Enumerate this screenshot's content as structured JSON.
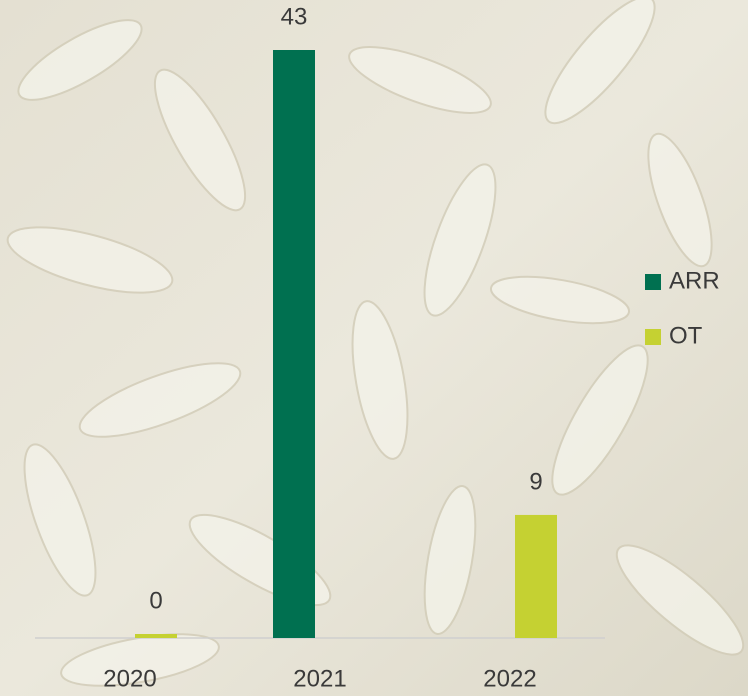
{
  "chart_data": {
    "type": "bar",
    "categories": [
      "2020",
      "2021",
      "2022"
    ],
    "series": [
      {
        "name": "ARR",
        "color": "#007050",
        "values": [
          null,
          43,
          null
        ]
      },
      {
        "name": "OT",
        "color": "#c5d132",
        "values": [
          0,
          null,
          9
        ]
      }
    ],
    "legend": "right"
  }
}
